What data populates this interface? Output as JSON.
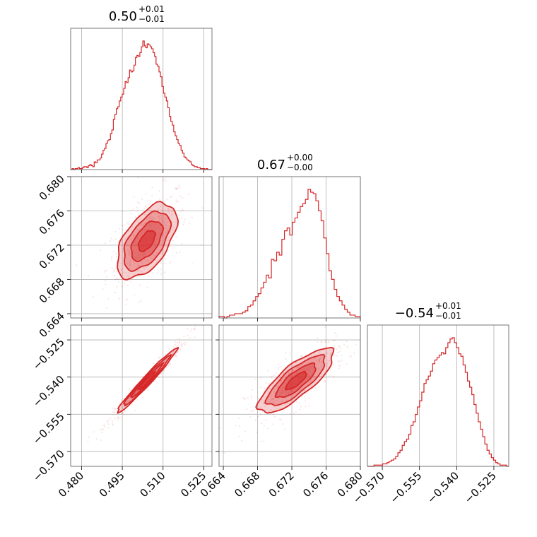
{
  "chart_data": {
    "type": "corner",
    "color": "#d62728",
    "parameters": [
      {
        "title": {
          "median": "0.50",
          "plus": "+0.01",
          "minus": "−0.01"
        },
        "range": [
          0.476,
          0.528
        ],
        "ticks": [
          0.48,
          0.495,
          0.51,
          0.525
        ],
        "tick_labels": [
          "0.480",
          "0.495",
          "0.510",
          "0.525"
        ],
        "hist_edges": [
          0.476,
          0.528
        ],
        "hist_counts": [
          0,
          1,
          0,
          1,
          1,
          2,
          1,
          1,
          2,
          3,
          3,
          2,
          4,
          5,
          4,
          3,
          8,
          7,
          10,
          10,
          12,
          16,
          20,
          22,
          27,
          30,
          31,
          37,
          41,
          52,
          57,
          63,
          65,
          71,
          75,
          78,
          84,
          91,
          90,
          95,
          103,
          101,
          102,
          108,
          116,
          118,
          117,
          121,
          127,
          133,
          128,
          126,
          130,
          129,
          127,
          125,
          121,
          117,
          109,
          107,
          101,
          96,
          86,
          79,
          75,
          71,
          64,
          55,
          50,
          46,
          39,
          35,
          31,
          27,
          25,
          20,
          17,
          13,
          12,
          10,
          9,
          8,
          5,
          4,
          3,
          3,
          2,
          2,
          1,
          1,
          1,
          0,
          1,
          0,
          0,
          0
        ]
      },
      {
        "title": {
          "median": "0.67",
          "plus": "+0.00",
          "minus": "−0.00"
        },
        "range": [
          0.6635,
          0.68
        ],
        "ticks": [
          0.664,
          0.668,
          0.672,
          0.676,
          0.68
        ],
        "tick_labels": [
          "0.664",
          "0.668",
          "0.672",
          "0.676",
          "0.680"
        ],
        "hist_counts": [
          1,
          1,
          0,
          1,
          2,
          2,
          3,
          3,
          3,
          4,
          5,
          8,
          9,
          12,
          15,
          17,
          21,
          25,
          30,
          28,
          41,
          40,
          46,
          44,
          55,
          61,
          63,
          58,
          67,
          70,
          74,
          78,
          80,
          83,
          90,
          88,
          87,
          82,
          75,
          68,
          56,
          45,
          33,
          27,
          20,
          15,
          12,
          9,
          6,
          4,
          2,
          2,
          1,
          1
        ]
      },
      {
        "title": {
          "median": "−0.54",
          "plus": "+0.01",
          "minus": "−0.01"
        },
        "range": [
          -0.576,
          -0.519
        ],
        "ticks": [
          -0.57,
          -0.555,
          -0.54,
          -0.525
        ],
        "tick_labels": [
          "−0.570",
          "−0.555",
          "−0.540",
          "−0.525"
        ],
        "hist_counts": [
          0,
          0,
          0,
          1,
          1,
          1,
          1,
          2,
          2,
          3,
          4,
          5,
          6,
          8,
          11,
          13,
          17,
          20,
          22,
          26,
          33,
          36,
          42,
          48,
          53,
          60,
          67,
          70,
          73,
          77,
          83,
          86,
          88,
          90,
          92,
          91,
          96,
          100,
          103,
          104,
          100,
          96,
          91,
          89,
          82,
          76,
          69,
          64,
          58,
          50,
          43,
          36,
          30,
          24,
          18,
          13,
          10,
          7,
          5,
          3,
          2,
          1,
          1,
          1,
          0
        ]
      }
    ],
    "correlations": [
      {
        "pair": [
          0,
          1
        ],
        "rho": 0.55
      },
      {
        "pair": [
          0,
          2
        ],
        "rho": 0.98
      },
      {
        "pair": [
          1,
          2
        ],
        "rho": 0.8
      }
    ]
  }
}
